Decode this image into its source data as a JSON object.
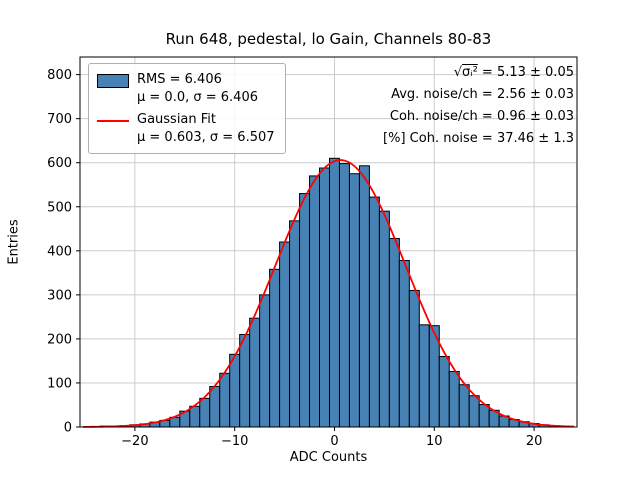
{
  "figure": {
    "title": "Run 648, pedestal, lo Gain, Channels 80-83"
  },
  "chart_data": {
    "type": "bar",
    "subtype": "histogram-with-gaussian-fit",
    "title": "Run 648, pedestal, lo Gain, Channels 80-83",
    "xlabel": "ADC Counts",
    "ylabel": "Entries",
    "xlim": [
      -25.5,
      24.3
    ],
    "ylim": [
      0,
      840
    ],
    "xticks": [
      -20,
      -10,
      0,
      10,
      20
    ],
    "yticks": [
      0,
      100,
      200,
      300,
      400,
      500,
      600,
      700,
      800
    ],
    "grid": true,
    "bin_width": 1,
    "bin_centers": [
      -24,
      -23,
      -22,
      -21,
      -20,
      -19,
      -18,
      -17,
      -16,
      -15,
      -14,
      -13,
      -12,
      -11,
      -10,
      -9,
      -8,
      -7,
      -6,
      -5,
      -4,
      -3,
      -2,
      -1,
      0,
      1,
      2,
      3,
      4,
      5,
      6,
      7,
      8,
      9,
      10,
      11,
      12,
      13,
      14,
      15,
      16,
      17,
      18,
      19,
      20,
      21,
      22,
      23
    ],
    "counts": [
      1,
      2,
      2,
      3,
      5,
      7,
      11,
      15,
      22,
      36,
      47,
      65,
      92,
      122,
      165,
      210,
      247,
      300,
      358,
      420,
      468,
      530,
      570,
      588,
      610,
      598,
      575,
      593,
      522,
      490,
      428,
      378,
      310,
      232,
      230,
      160,
      126,
      96,
      71,
      51,
      38,
      25,
      17,
      12,
      8,
      5,
      3,
      2
    ],
    "fit": {
      "amplitude": 606,
      "mu": 0.603,
      "sigma": 6.507
    },
    "colors": {
      "bar_fill": "#4682b4",
      "bar_edge": "#000000",
      "fit_line": "#ff0000",
      "grid": "#cccccc",
      "axes": "#000000"
    }
  },
  "legend": {
    "entries": [
      {
        "swatch": "patch",
        "line1": "RMS = 6.406",
        "line2": "μ = 0.0, σ = 6.406"
      },
      {
        "swatch": "line",
        "line1": "Gaussian Fit",
        "line2": "μ = 0.603, σ = 6.507"
      }
    ]
  },
  "stats": {
    "line1": {
      "sqrt": "√",
      "expr": "σᵢ²",
      "value": " = 5.13 ± 0.05"
    },
    "line2": "Avg. noise/ch = 2.56 ± 0.03",
    "line3": "Coh. noise/ch = 0.96 ± 0.03",
    "line4": "[%] Coh. noise = 37.46 ± 1.3"
  }
}
